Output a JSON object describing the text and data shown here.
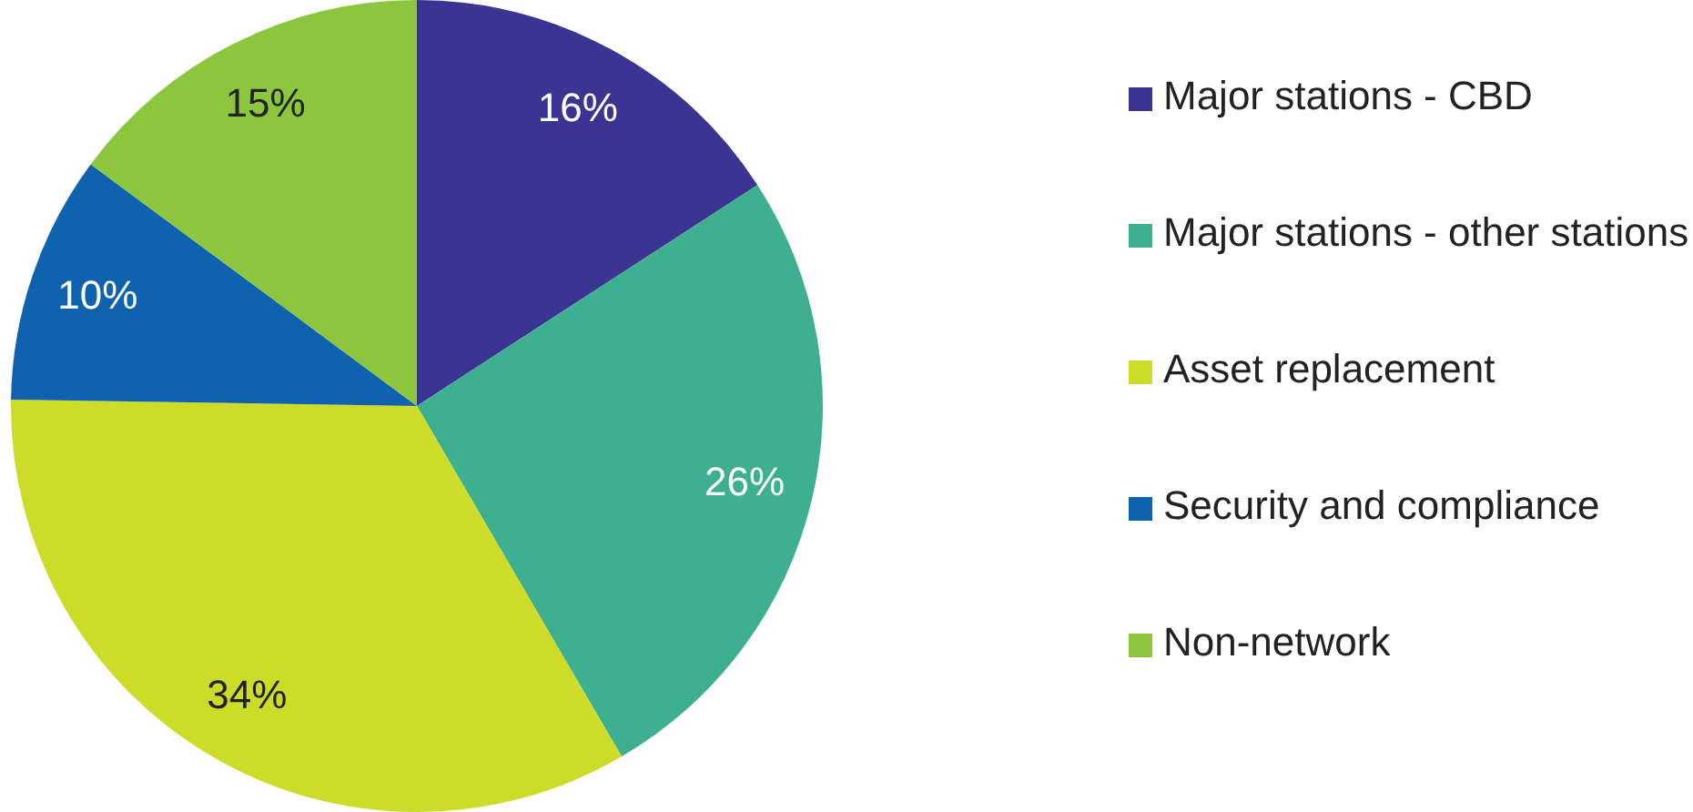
{
  "chart_data": {
    "type": "pie",
    "categories": [
      "Major stations - CBD",
      "Major stations - other stations",
      "Asset replacement",
      "Security and compliance",
      "Non-network"
    ],
    "values": [
      16,
      26,
      34,
      10,
      15
    ],
    "colors": [
      "#3a3592",
      "#3fb08f",
      "#cddc29",
      "#0f62ae",
      "#8cc63f"
    ],
    "value_labels": [
      "16%",
      "26%",
      "34%",
      "10%",
      "15%"
    ],
    "legend": "right"
  }
}
